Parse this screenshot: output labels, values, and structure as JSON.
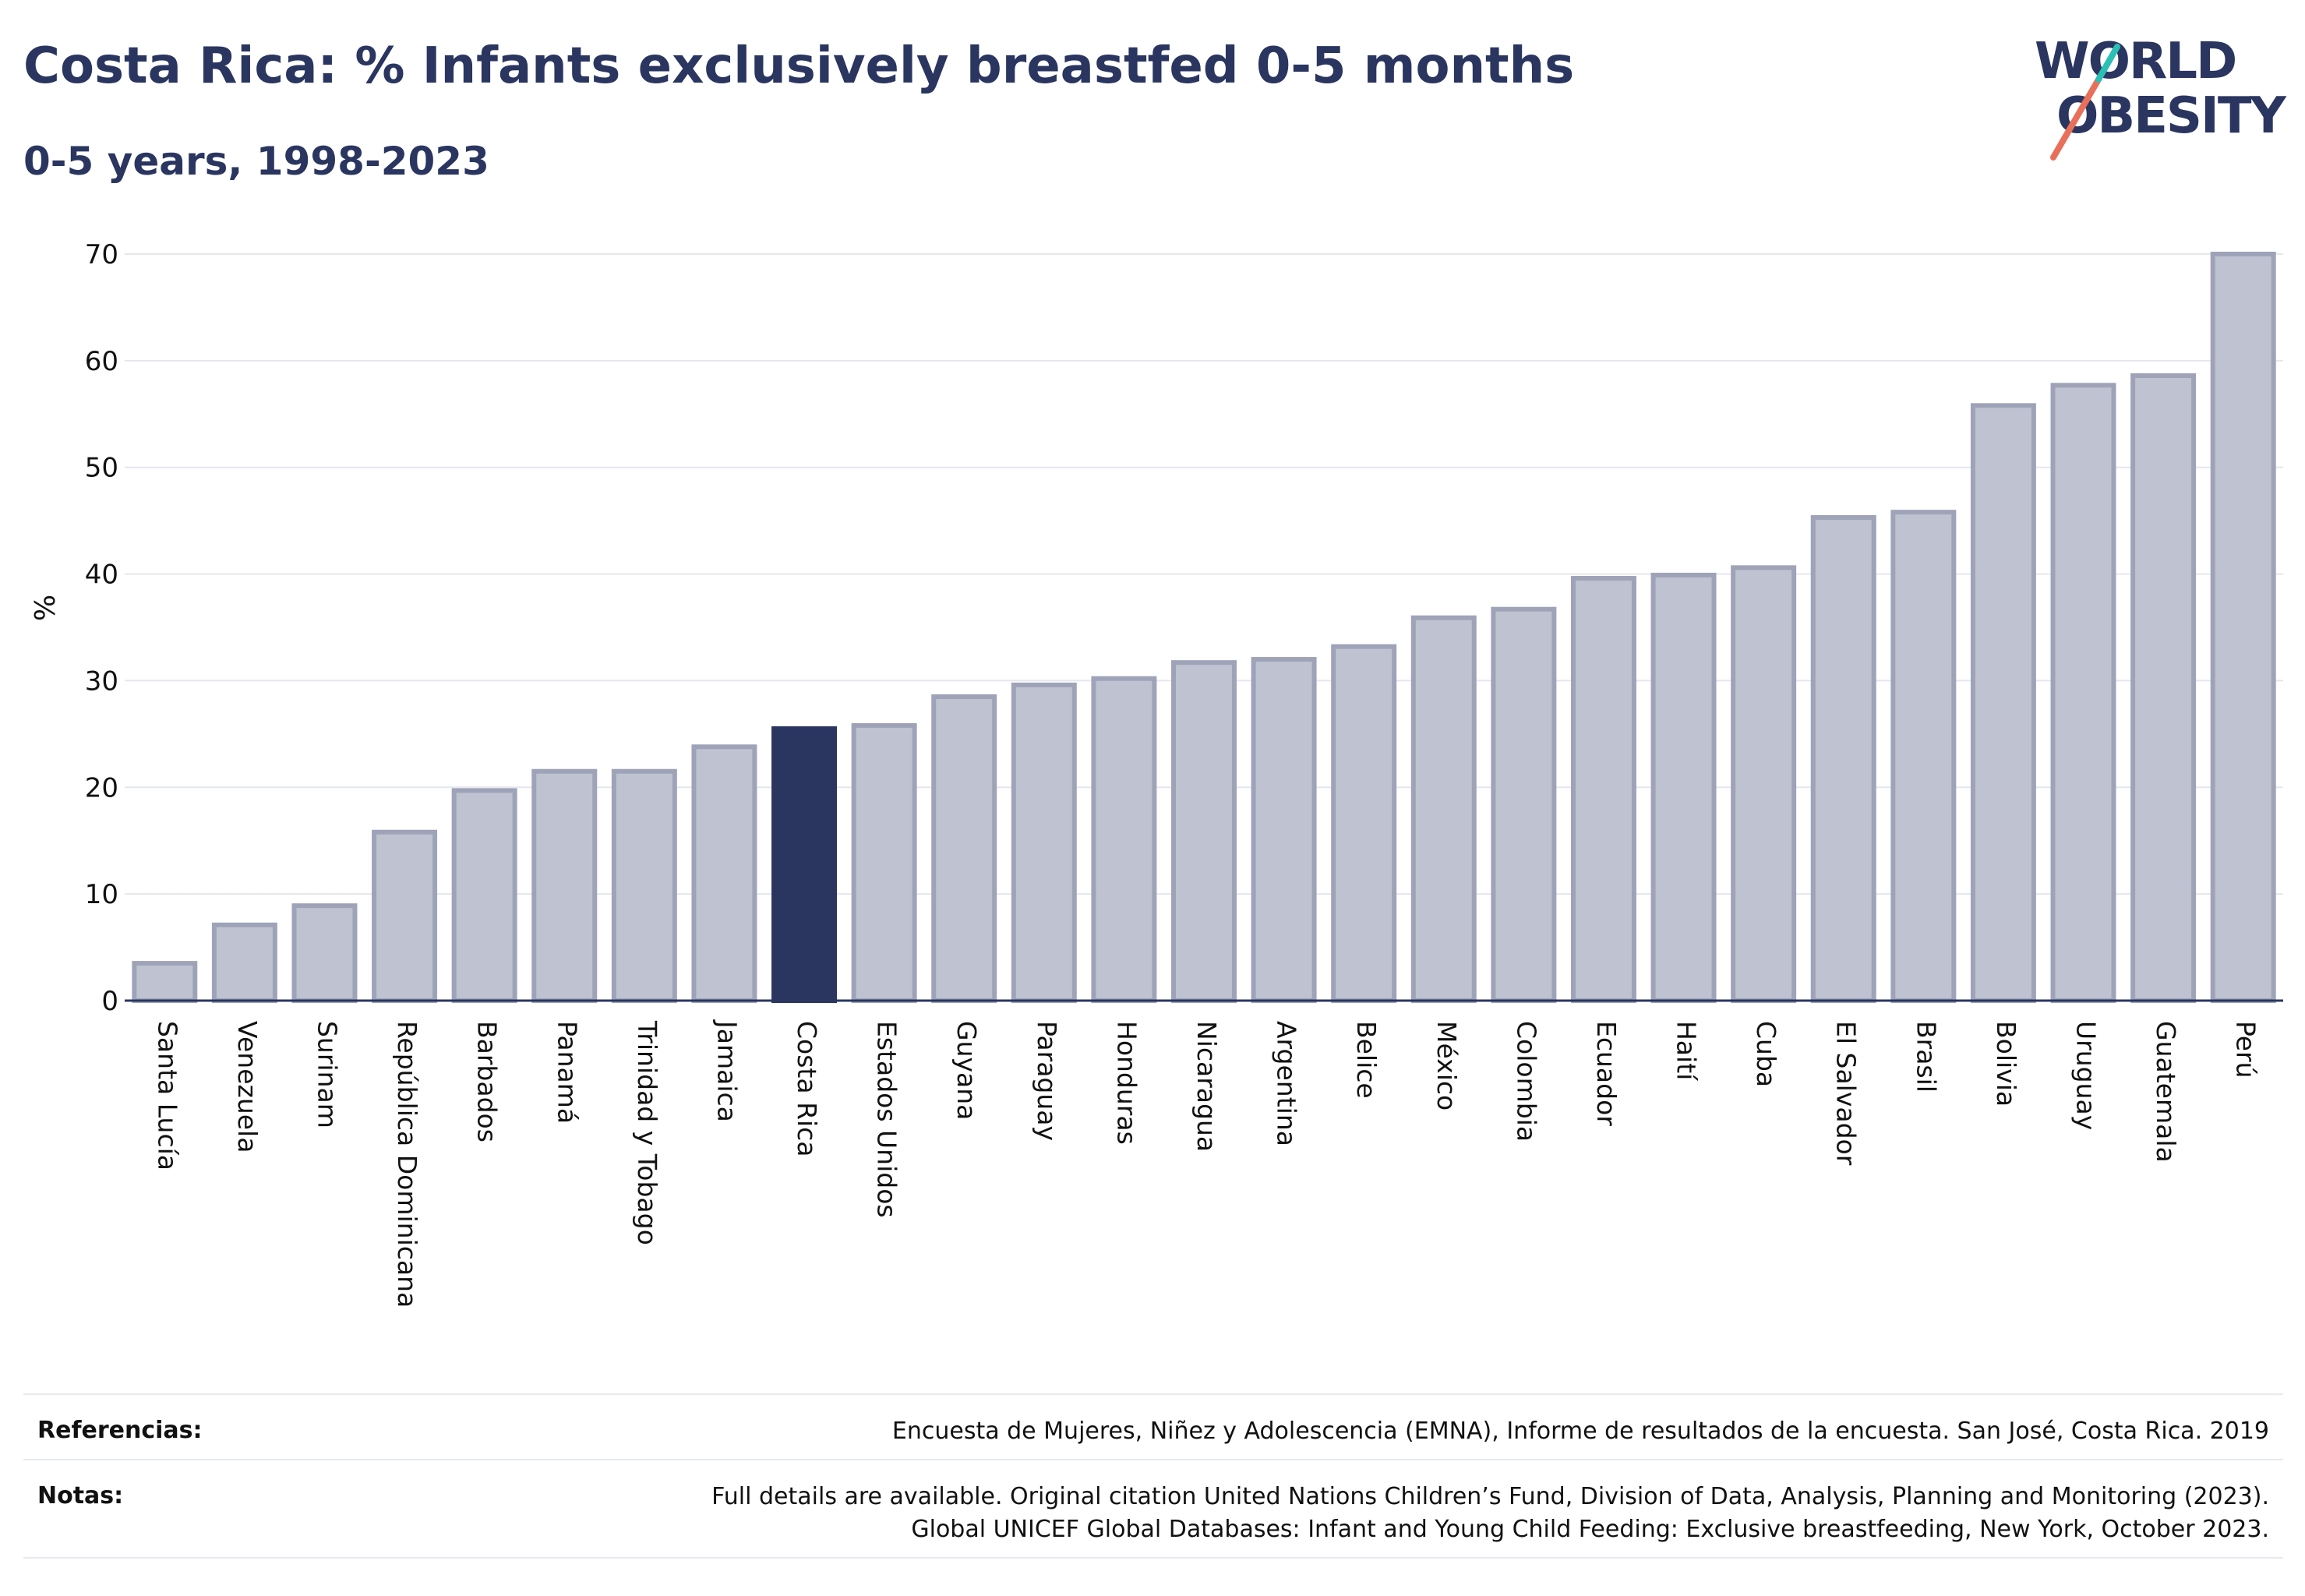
{
  "title": "Costa Rica: % Infants exclusively breastfed 0-5 months",
  "subtitle": "0-5 years, 1998-2023",
  "logo": {
    "line1": "WORLD",
    "line2": "OBESITY",
    "colors": [
      "#2a3560",
      "#e8705a",
      "#2bbfb5"
    ]
  },
  "colors": {
    "highlight": "#2a3560",
    "bar_fill": "#bfc2d0",
    "bar_stroke": "#9ea3b8",
    "grid": "#e6e7ee"
  },
  "chart_data": {
    "type": "bar",
    "title": "Costa Rica: % Infants exclusively breastfed 0-5 months",
    "subtitle": "0-5 years, 1998-2023",
    "ylabel": "%",
    "xlabel": "",
    "ylim": [
      0,
      70
    ],
    "yticks": [
      0,
      10,
      20,
      30,
      40,
      50,
      60,
      70
    ],
    "grid": true,
    "highlight": "Costa Rica",
    "categories": [
      "Santa Lucía",
      "Venezuela",
      "Surinam",
      "República Dominicana",
      "Barbados",
      "Panamá",
      "Trinidad y Tobago",
      "Jamaica",
      "Costa Rica",
      "Estados Unidos",
      "Guyana",
      "Paraguay",
      "Honduras",
      "Nicaragua",
      "Argentina",
      "Belice",
      "México",
      "Colombia",
      "Ecuador",
      "Haití",
      "Cuba",
      "El Salvador",
      "Brasil",
      "Bolivia",
      "Uruguay",
      "Guatemala",
      "Perú"
    ],
    "values": [
      3.5,
      7.1,
      8.9,
      15.8,
      19.7,
      21.5,
      21.5,
      23.8,
      25.5,
      25.8,
      28.5,
      29.6,
      30.2,
      31.7,
      32.0,
      33.2,
      35.9,
      36.7,
      39.6,
      39.9,
      40.6,
      45.3,
      45.8,
      55.8,
      57.7,
      58.6,
      70.0
    ]
  },
  "footer": {
    "references_label": "Referencias:",
    "references_text": "Encuesta de Mujeres, Niñez y Adolescencia (EMNA), Informe de resultados de la encuesta. San José, Costa Rica. 2019",
    "notes_label": "Notas:",
    "notes_line1": "Full details are available. Original citation United Nations Children’s Fund, Division of Data, Analysis, Planning and Monitoring (2023).",
    "notes_line2": "Global UNICEF Global Databases: Infant and Young Child Feeding: Exclusive breastfeeding, New York, October 2023."
  }
}
